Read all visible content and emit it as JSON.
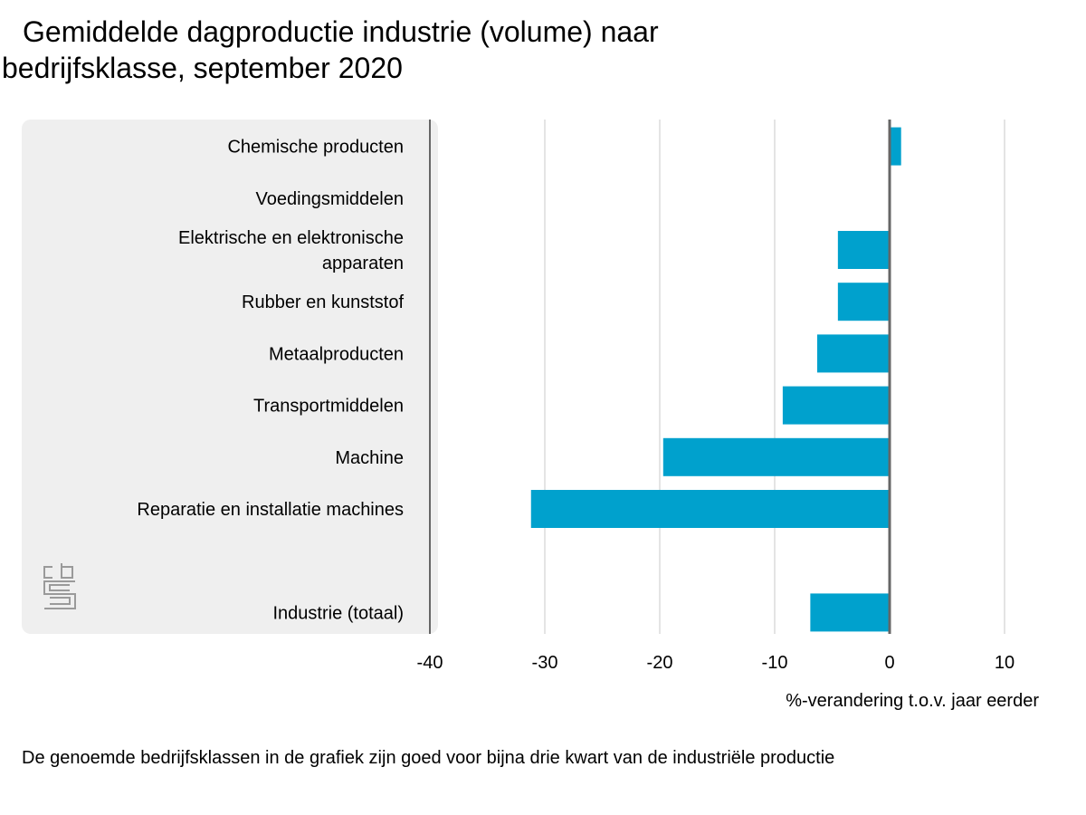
{
  "title": {
    "line1": "Gemiddelde dagproductie industrie (volume) naar",
    "line2": "bedrijfsklasse, september 2020"
  },
  "footnote": "De genoemde bedrijfsklassen in de grafiek zijn goed voor bijna drie kwart van de industriële productie",
  "colors": {
    "bar": "#00a1cd",
    "panel": "#efefef",
    "grid": "#c8c8c8",
    "axis": "#666666",
    "logo": "#9a9a9a"
  },
  "logo_icon": "cbs-logo-icon",
  "chart_data": {
    "type": "bar",
    "orientation": "horizontal",
    "categories": [
      [
        "Chemische producten"
      ],
      [
        "Voedingsmiddelen"
      ],
      [
        "Elektrische en elektronische",
        "apparaten"
      ],
      [
        "Rubber en kunststof"
      ],
      [
        "Metaalproducten"
      ],
      [
        "Transportmiddelen"
      ],
      [
        "Machine"
      ],
      [
        "Reparatie en installatie machines"
      ],
      [],
      [
        "Industrie (totaal)"
      ]
    ],
    "values": [
      1.0,
      0.0,
      -4.5,
      -4.5,
      -6.3,
      -9.3,
      -19.7,
      -31.2,
      null,
      -6.9
    ],
    "xlim": [
      -40,
      10
    ],
    "xticks": [
      -40,
      -30,
      -20,
      -10,
      0,
      10
    ],
    "xlabel": "%-verandering t.o.v. jaar eerder",
    "grid": true
  }
}
